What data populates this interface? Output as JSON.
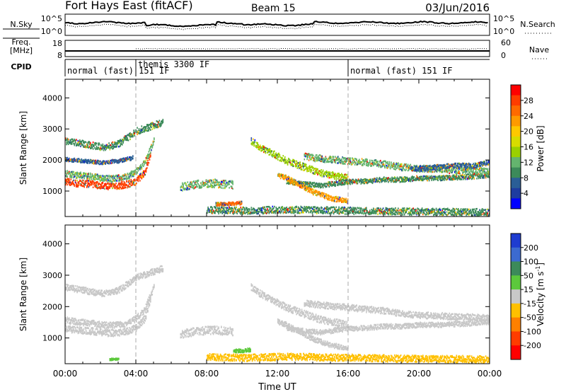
{
  "header": {
    "title": "Fort Hays East (fitACF)",
    "beam": "Beam 15",
    "date": "03/Jun/2016"
  },
  "nsky_panel": {
    "left_label": "N.Sky",
    "left_ticks": [
      "10^5",
      "10^0"
    ],
    "right_ticks": [
      "10^5",
      "10^0"
    ],
    "right_label": "N.Search"
  },
  "freq_panel": {
    "left_label_line1": "Freq.",
    "left_label_line2": "[MHz]",
    "left_ticks": [
      "18",
      "8"
    ],
    "right_ticks": [
      "60",
      "0"
    ],
    "right_label": "Nave"
  },
  "cpid_panel": {
    "label": "CPID",
    "segments": [
      {
        "text": "normal (fast) 151 IF",
        "start_hour": 0
      },
      {
        "text": "themis 3300 IF",
        "start_hour": 4
      },
      {
        "text": "normal (fast) 151 IF",
        "start_hour": 16
      }
    ]
  },
  "x_axis": {
    "label": "Time UT",
    "ticks": [
      "00:00",
      "04:00",
      "08:00",
      "12:00",
      "16:00",
      "20:00",
      "00:00"
    ],
    "range_hours": [
      0,
      24
    ]
  },
  "chart_data": [
    {
      "type": "heatmap",
      "name": "power",
      "ylabel": "Slant Range [km]",
      "ylim": [
        180,
        4600
      ],
      "yticks": [
        1000,
        2000,
        3000,
        4000
      ],
      "colorbar_label": "Power [dB]",
      "colorbar_ticks": [
        28,
        24,
        20,
        16,
        12,
        8,
        4
      ],
      "colorbar_colors": [
        "#ff0000",
        "#ff3c00",
        "#ff6a00",
        "#ff9a00",
        "#ffc800",
        "#d8dc00",
        "#9ad000",
        "#64b46e",
        "#3c8a5a",
        "#2a5e96",
        "#1e3ca0",
        "#0000ff"
      ],
      "bands": [
        {
          "x": [
            0,
            0.5,
            1,
            1.5,
            2,
            2.5,
            3,
            3.5,
            4,
            4.5,
            4.8
          ],
          "y": [
            1300,
            1240,
            1220,
            1200,
            1160,
            1140,
            1150,
            1200,
            1300,
            1600,
            2200
          ],
          "w": 220,
          "color": "#ff3c00"
        },
        {
          "x": [
            0,
            0.5,
            1,
            1.5,
            2,
            2.5,
            3,
            3.5,
            4,
            4.5,
            5
          ],
          "y": [
            1550,
            1500,
            1480,
            1450,
            1400,
            1380,
            1400,
            1450,
            1600,
            1900,
            2600
          ],
          "w": 200,
          "color": "#64b46e"
        },
        {
          "x": [
            0,
            0.5,
            1,
            1.5,
            2,
            2.5,
            3,
            3.5,
            4,
            4.5,
            5,
            5.5
          ],
          "y": [
            2600,
            2550,
            2500,
            2450,
            2400,
            2420,
            2500,
            2700,
            2900,
            3000,
            3100,
            3200
          ],
          "w": 220,
          "color": "#3c8a5a"
        },
        {
          "x": [
            0,
            1,
            2,
            3,
            3.8
          ],
          "y": [
            2000,
            1950,
            1900,
            1950,
            2050
          ],
          "w": 120,
          "color": "#2a5e96"
        },
        {
          "x": [
            6.5,
            7,
            7.5,
            8,
            8.5,
            9,
            9.5
          ],
          "y": [
            1100,
            1150,
            1200,
            1220,
            1230,
            1200,
            1180
          ],
          "w": 260,
          "color": "#64b46e"
        },
        {
          "x": [
            10.5,
            11,
            11.5,
            12,
            12.5,
            13,
            13.5,
            14,
            14.5,
            15,
            15.5,
            16
          ],
          "y": [
            2600,
            2400,
            2250,
            2100,
            1950,
            1850,
            1750,
            1650,
            1550,
            1500,
            1450,
            1400
          ],
          "w": 220,
          "color": "#9ad000"
        },
        {
          "x": [
            12.5,
            13,
            13.5,
            14,
            14.5,
            15,
            15.5,
            16,
            17,
            18,
            19,
            20,
            21,
            22,
            23,
            24
          ],
          "y": [
            1300,
            1250,
            1200,
            1180,
            1160,
            1200,
            1250,
            1280,
            1300,
            1350,
            1350,
            1400,
            1400,
            1420,
            1450,
            1500
          ],
          "w": 160,
          "color": "#3c8a5a"
        },
        {
          "x": [
            12,
            12.5,
            13,
            13.5,
            14,
            14.5,
            15,
            15.5,
            16
          ],
          "y": [
            1500,
            1400,
            1250,
            1100,
            950,
            850,
            750,
            700,
            650
          ],
          "w": 160,
          "color": "#ff9a00"
        },
        {
          "x": [
            13.5,
            14,
            15,
            16,
            17,
            18,
            19,
            20,
            21,
            22,
            23,
            24
          ],
          "y": [
            2100,
            2050,
            2000,
            1950,
            1900,
            1850,
            1750,
            1700,
            1700,
            1650,
            1650,
            1600
          ],
          "w": 220,
          "color": "#64b46e"
        },
        {
          "x": [
            19.5,
            20,
            21,
            22,
            23,
            24
          ],
          "y": [
            1700,
            1700,
            1750,
            1800,
            1800,
            1900
          ],
          "w": 160,
          "color": "#2a5e96"
        },
        {
          "x": [
            8,
            9,
            10,
            11,
            12,
            13,
            14,
            15,
            16,
            17,
            18,
            19,
            20,
            21,
            22,
            23,
            24
          ],
          "y": [
            380,
            360,
            350,
            360,
            380,
            380,
            370,
            360,
            350,
            340,
            330,
            320,
            320,
            310,
            310,
            300,
            300
          ],
          "w": 220,
          "color": "#3c8a5a"
        },
        {
          "x": [
            8.5,
            9,
            9.5,
            10
          ],
          "y": [
            560,
            560,
            580,
            600
          ],
          "w": 100,
          "color": "#ff6a00"
        }
      ]
    },
    {
      "type": "heatmap",
      "name": "velocity",
      "ylabel": "Slant Range [km]",
      "ylim": [
        180,
        4600
      ],
      "yticks": [
        1000,
        2000,
        3000,
        4000
      ],
      "colorbar_label": "Velocity [m s^-1]",
      "colorbar_ticks": [
        "200",
        "100",
        "50",
        "15",
        "-15",
        "-50",
        "-100",
        "-200"
      ],
      "colorbar_colors": [
        "#1e3cd0",
        "#3c6ad0",
        "#3c8a5a",
        "#5cc83c",
        "#c8c8c8",
        "#ffc000",
        "#ff8000",
        "#ff3c00",
        "#ff0000"
      ],
      "bands": [
        {
          "x": [
            0,
            0.5,
            1,
            1.5,
            2,
            2.5,
            3,
            3.5,
            4,
            4.5,
            4.8
          ],
          "y": [
            1300,
            1240,
            1220,
            1200,
            1160,
            1140,
            1150,
            1200,
            1300,
            1600,
            2200
          ],
          "w": 220,
          "color": "#c8c8c8"
        },
        {
          "x": [
            0,
            0.5,
            1,
            1.5,
            2,
            2.5,
            3,
            3.5,
            4,
            4.5,
            5
          ],
          "y": [
            1550,
            1500,
            1480,
            1450,
            1400,
            1380,
            1400,
            1450,
            1600,
            1900,
            2600
          ],
          "w": 200,
          "color": "#c8c8c8"
        },
        {
          "x": [
            0,
            0.5,
            1,
            1.5,
            2,
            2.5,
            3,
            3.5,
            4,
            4.5,
            5,
            5.5
          ],
          "y": [
            2600,
            2550,
            2500,
            2450,
            2400,
            2420,
            2500,
            2700,
            2900,
            3000,
            3100,
            3200
          ],
          "w": 200,
          "color": "#c8c8c8"
        },
        {
          "x": [
            6.5,
            7,
            7.5,
            8,
            8.5,
            9,
            9.5
          ],
          "y": [
            1100,
            1150,
            1200,
            1220,
            1230,
            1200,
            1180
          ],
          "w": 260,
          "color": "#c8c8c8"
        },
        {
          "x": [
            10.5,
            11,
            11.5,
            12,
            12.5,
            13,
            13.5,
            14,
            14.5,
            15,
            15.5,
            16
          ],
          "y": [
            2600,
            2400,
            2250,
            2100,
            1950,
            1850,
            1750,
            1650,
            1550,
            1500,
            1450,
            1400
          ],
          "w": 220,
          "color": "#c8c8c8"
        },
        {
          "x": [
            12.5,
            13,
            13.5,
            14,
            14.5,
            15,
            15.5,
            16,
            17,
            18,
            19,
            20,
            21,
            22,
            23,
            24
          ],
          "y": [
            1300,
            1250,
            1200,
            1180,
            1160,
            1200,
            1250,
            1280,
            1300,
            1350,
            1350,
            1400,
            1400,
            1420,
            1450,
            1500
          ],
          "w": 160,
          "color": "#c8c8c8"
        },
        {
          "x": [
            12,
            12.5,
            13,
            13.5,
            14,
            14.5,
            15,
            15.5,
            16
          ],
          "y": [
            1500,
            1400,
            1250,
            1100,
            950,
            850,
            750,
            700,
            650
          ],
          "w": 160,
          "color": "#c8c8c8"
        },
        {
          "x": [
            13.5,
            14,
            15,
            16,
            17,
            18,
            19,
            20,
            21,
            22,
            23,
            24
          ],
          "y": [
            2100,
            2050,
            2000,
            1950,
            1900,
            1850,
            1750,
            1700,
            1700,
            1650,
            1650,
            1600
          ],
          "w": 200,
          "color": "#c8c8c8"
        },
        {
          "x": [
            8,
            9,
            10,
            11,
            12,
            13,
            14,
            15,
            16,
            17,
            18,
            19,
            20,
            21,
            22,
            23,
            24
          ],
          "y": [
            380,
            360,
            350,
            360,
            380,
            380,
            370,
            360,
            350,
            340,
            330,
            320,
            320,
            310,
            310,
            300,
            300
          ],
          "w": 220,
          "color": "#ffc000"
        },
        {
          "x": [
            9.5,
            10,
            10.5
          ],
          "y": [
            560,
            580,
            600
          ],
          "w": 120,
          "color": "#5cc83c"
        },
        {
          "x": [
            2.5,
            3
          ],
          "y": [
            300,
            300
          ],
          "w": 60,
          "color": "#5cc83c"
        }
      ]
    }
  ]
}
